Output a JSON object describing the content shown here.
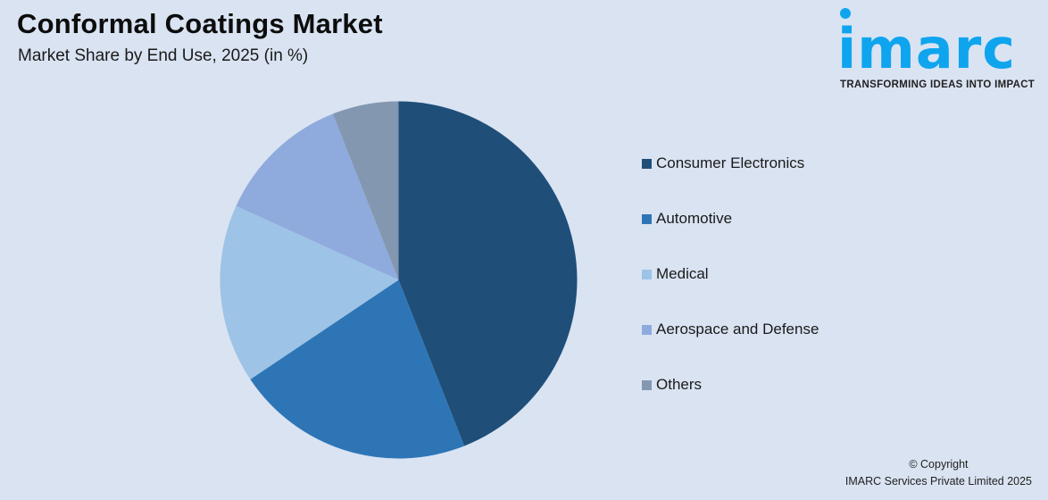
{
  "header": {
    "title": "Conformal Coatings Market",
    "subtitle": "Market Share by End Use, 2025 (in %)"
  },
  "logo": {
    "wordmark": "imarc",
    "tagline": "TRANSFORMING IDEAS INTO IMPACT",
    "color": "#0ea5ee"
  },
  "footer": {
    "copyright_line1": "© Copyright",
    "copyright_line2": "IMARC Services Private Limited 2025"
  },
  "chart_data": {
    "type": "pie",
    "title": "Conformal Coatings Market",
    "subtitle": "Market Share by End Use, 2025 (in %)",
    "categories": [
      "Consumer Electronics",
      "Automotive",
      "Medical",
      "Aerospace and Defense",
      "Others"
    ],
    "values": [
      44,
      21.6,
      16.2,
      12.2,
      6
    ],
    "colors": [
      "#1f4e79",
      "#2e75b6",
      "#9dc3e6",
      "#8faadc",
      "#8497b0"
    ],
    "start_angle_deg": 0,
    "direction": "clockwise",
    "data_labels": false,
    "legend_position": "right"
  }
}
